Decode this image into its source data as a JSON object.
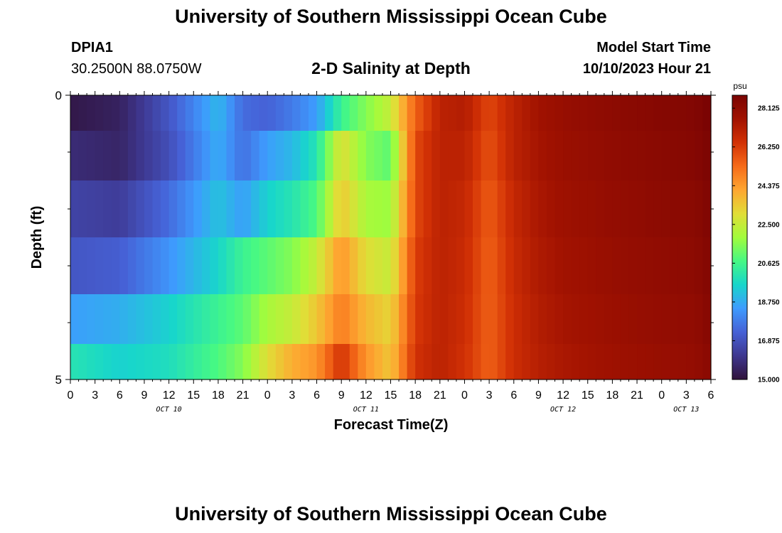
{
  "header": {
    "title": "University of Southern Mississippi Ocean Cube",
    "footer_title": "University of Southern Mississippi Ocean Cube",
    "station_id": "DPIA1",
    "location": "30.2500N  88.0750W",
    "model_start_label": "Model Start Time",
    "model_start_value": "10/10/2023 Hour 21"
  },
  "chart_data": {
    "type": "heatmap",
    "title": "2-D Salinity at Depth",
    "xlabel": "Forecast Time(Z)",
    "ylabel": "Depth (ft)",
    "x_tick_labels": [
      "0",
      "3",
      "6",
      "9",
      "12",
      "15",
      "18",
      "21",
      "0",
      "3",
      "6",
      "9",
      "12",
      "15",
      "18",
      "21",
      "0",
      "3",
      "6",
      "9",
      "12",
      "15",
      "18",
      "21",
      "0",
      "3",
      "6"
    ],
    "x_range_hours": [
      0,
      78
    ],
    "day_labels": [
      {
        "label": "OCT 10",
        "hour": 12
      },
      {
        "label": "OCT 11",
        "hour": 36
      },
      {
        "label": "OCT 12",
        "hour": 60
      },
      {
        "label": "OCT 13",
        "hour": 75
      }
    ],
    "y_tick_labels": [
      "0",
      "5"
    ],
    "y_range": [
      0,
      5
    ],
    "colorbar": {
      "unit": "psu",
      "min": 15.0,
      "max": 28.75,
      "tick_labels": [
        "28.125",
        "26.250",
        "24.375",
        "22.500",
        "20.625",
        "18.750",
        "16.875",
        "15.000"
      ],
      "colors": [
        "#30123b",
        "#3e378f",
        "#4661d6",
        "#3e9bfe",
        "#18d6cb",
        "#46f884",
        "#a2fc3c",
        "#e1dd37",
        "#fea631",
        "#f66b19",
        "#d23105",
        "#a11201",
        "#7a0403"
      ]
    },
    "row_depths_ft": [
      0.25,
      1.0,
      2.0,
      3.0,
      4.0,
      4.75
    ],
    "series": [
      {
        "depth": 0.25,
        "x_hours": [
          0,
          6,
          12,
          18,
          21,
          24,
          27,
          30,
          33,
          36,
          39,
          42,
          45,
          48,
          51,
          54,
          57,
          60,
          66,
          72,
          76,
          78
        ],
        "values": [
          15.2,
          15.5,
          17.0,
          19.0,
          17.5,
          17.3,
          17.8,
          18.5,
          20.5,
          21.5,
          22.5,
          25.5,
          27.0,
          27.2,
          26.0,
          27.0,
          27.6,
          27.9,
          28.2,
          28.4,
          28.5,
          28.8
        ]
      },
      {
        "depth": 1.0,
        "x_hours": [
          0,
          6,
          12,
          18,
          21,
          24,
          27,
          30,
          33,
          36,
          39,
          42,
          45,
          48,
          51,
          54,
          57,
          60,
          66,
          72,
          76,
          78
        ],
        "values": [
          15.8,
          15.6,
          16.8,
          18.8,
          17.6,
          18.5,
          19.0,
          20.0,
          23.0,
          21.5,
          21.0,
          26.0,
          27.0,
          27.0,
          25.8,
          27.0,
          27.5,
          27.8,
          28.1,
          28.3,
          28.4,
          28.7
        ]
      },
      {
        "depth": 2.0,
        "x_hours": [
          0,
          6,
          12,
          18,
          21,
          24,
          27,
          30,
          33,
          36,
          39,
          42,
          45,
          48,
          51,
          54,
          57,
          60,
          66,
          72,
          76,
          78
        ],
        "values": [
          16.5,
          16.3,
          17.5,
          19.2,
          18.5,
          19.5,
          20.0,
          20.8,
          23.5,
          22.0,
          21.8,
          26.0,
          27.0,
          26.8,
          25.6,
          26.8,
          27.4,
          27.7,
          28.0,
          28.2,
          28.3,
          28.6
        ]
      },
      {
        "depth": 3.0,
        "x_hours": [
          0,
          6,
          12,
          18,
          21,
          24,
          27,
          30,
          33,
          36,
          39,
          42,
          45,
          48,
          51,
          54,
          57,
          60,
          66,
          72,
          76,
          78
        ],
        "values": [
          17.0,
          17.2,
          18.3,
          19.6,
          20.5,
          21.0,
          21.5,
          22.5,
          24.5,
          23.0,
          22.5,
          26.2,
          27.0,
          26.7,
          25.5,
          26.7,
          27.3,
          27.6,
          27.9,
          28.1,
          28.2,
          28.5
        ]
      },
      {
        "depth": 4.0,
        "x_hours": [
          0,
          6,
          12,
          18,
          21,
          24,
          27,
          30,
          33,
          36,
          39,
          42,
          45,
          48,
          51,
          54,
          57,
          60,
          66,
          72,
          76,
          78
        ],
        "values": [
          18.5,
          18.8,
          19.5,
          20.5,
          21.0,
          22.0,
          22.5,
          23.5,
          25.0,
          23.8,
          23.2,
          26.3,
          27.0,
          26.6,
          25.5,
          26.6,
          27.2,
          27.5,
          27.8,
          28.0,
          28.1,
          28.4
        ]
      },
      {
        "depth": 4.75,
        "x_hours": [
          0,
          6,
          12,
          18,
          21,
          24,
          27,
          30,
          33,
          36,
          39,
          42,
          45,
          48,
          51,
          54,
          57,
          60,
          66,
          72,
          76,
          78
        ],
        "values": [
          20.0,
          19.5,
          19.8,
          20.8,
          21.5,
          23.0,
          24.0,
          24.5,
          26.5,
          24.5,
          23.5,
          26.5,
          27.0,
          26.5,
          25.5,
          26.6,
          27.1,
          27.4,
          27.7,
          27.9,
          28.0,
          28.3
        ]
      }
    ]
  }
}
